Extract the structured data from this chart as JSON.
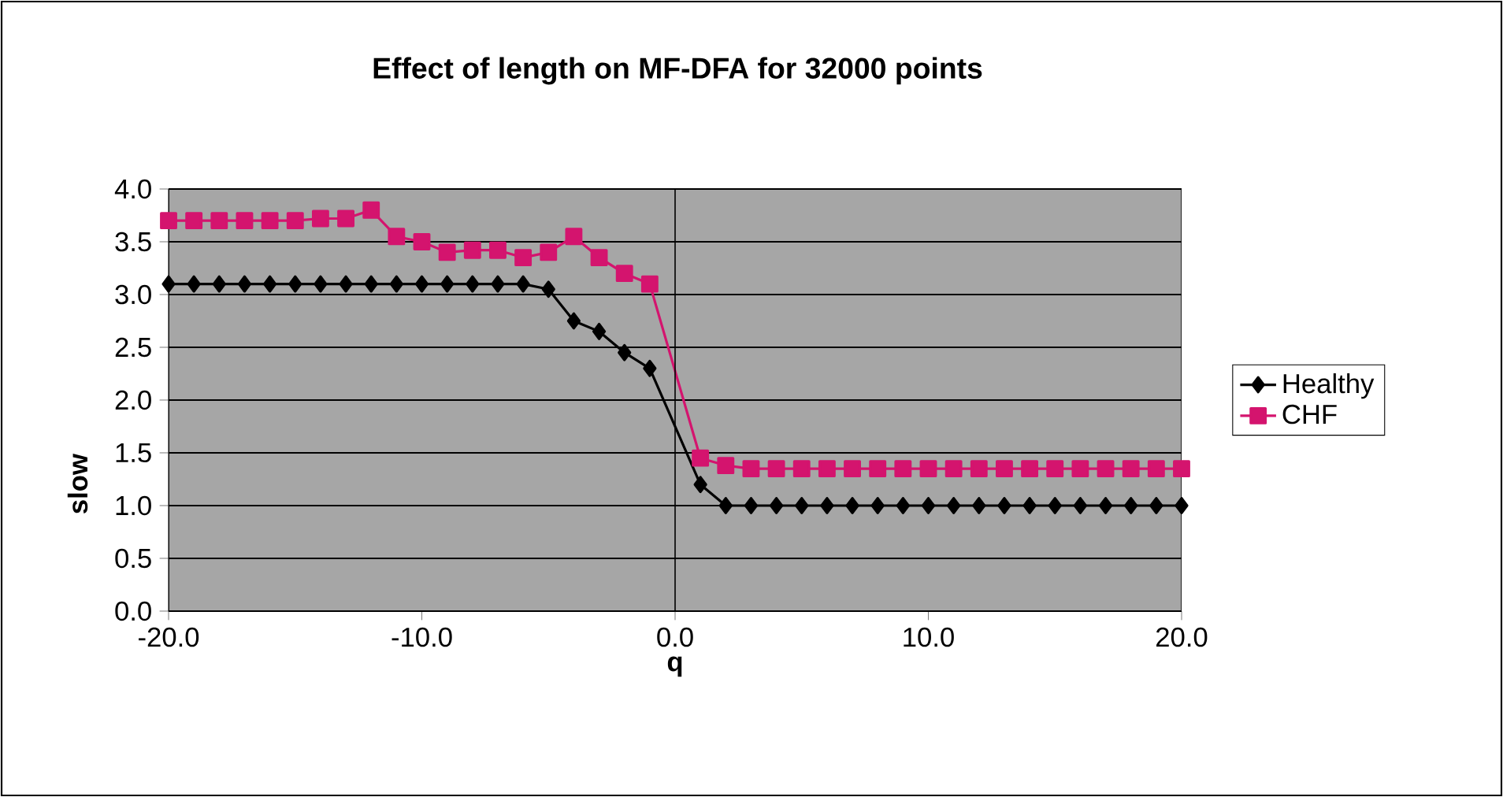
{
  "chart_data": {
    "type": "line",
    "title": "Effect of length on MF-DFA for 32000 points",
    "xlabel": "q",
    "ylabel": "slow",
    "x": [
      -20,
      -19,
      -18,
      -17,
      -16,
      -15,
      -14,
      -13,
      -12,
      -11,
      -10,
      -9,
      -8,
      -7,
      -6,
      -5,
      -4,
      -3,
      -2,
      -1,
      1,
      2,
      3,
      4,
      5,
      6,
      7,
      8,
      9,
      10,
      11,
      12,
      13,
      14,
      15,
      16,
      17,
      18,
      19,
      20
    ],
    "series": [
      {
        "name": "Healthy",
        "color": "#000000",
        "marker": "diamond",
        "values": [
          3.1,
          3.1,
          3.1,
          3.1,
          3.1,
          3.1,
          3.1,
          3.1,
          3.1,
          3.1,
          3.1,
          3.1,
          3.1,
          3.1,
          3.1,
          3.05,
          2.75,
          2.65,
          2.45,
          2.3,
          1.2,
          1.0,
          1.0,
          1.0,
          1.0,
          1.0,
          1.0,
          1.0,
          1.0,
          1.0,
          1.0,
          1.0,
          1.0,
          1.0,
          1.0,
          1.0,
          1.0,
          1.0,
          1.0,
          1.0
        ]
      },
      {
        "name": "CHF",
        "color": "#d4146e",
        "marker": "square",
        "values": [
          3.7,
          3.7,
          3.7,
          3.7,
          3.7,
          3.7,
          3.72,
          3.72,
          3.8,
          3.55,
          3.5,
          3.4,
          3.42,
          3.42,
          3.35,
          3.4,
          3.55,
          3.35,
          3.2,
          3.1,
          1.45,
          1.38,
          1.35,
          1.35,
          1.35,
          1.35,
          1.35,
          1.35,
          1.35,
          1.35,
          1.35,
          1.35,
          1.35,
          1.35,
          1.35,
          1.35,
          1.35,
          1.35,
          1.35,
          1.35
        ]
      }
    ],
    "xlim": [
      -20,
      20
    ],
    "ylim": [
      0,
      4
    ],
    "xticks": [
      {
        "value": -20,
        "label": "-20.0"
      },
      {
        "value": -10,
        "label": "-10.0"
      },
      {
        "value": 0,
        "label": "0.0"
      },
      {
        "value": 10,
        "label": "10.0"
      },
      {
        "value": 20,
        "label": "20.0"
      }
    ],
    "yticks": [
      {
        "value": 0,
        "label": "0.0"
      },
      {
        "value": 0.5,
        "label": "0.5"
      },
      {
        "value": 1,
        "label": "1.0"
      },
      {
        "value": 1.5,
        "label": "1.5"
      },
      {
        "value": 2,
        "label": "2.0"
      },
      {
        "value": 2.5,
        "label": "2.5"
      },
      {
        "value": 3,
        "label": "3.0"
      },
      {
        "value": 3.5,
        "label": "3.5"
      },
      {
        "value": 4,
        "label": "4.0"
      }
    ],
    "grid": "y",
    "legend": "right",
    "line_style": "solid"
  }
}
